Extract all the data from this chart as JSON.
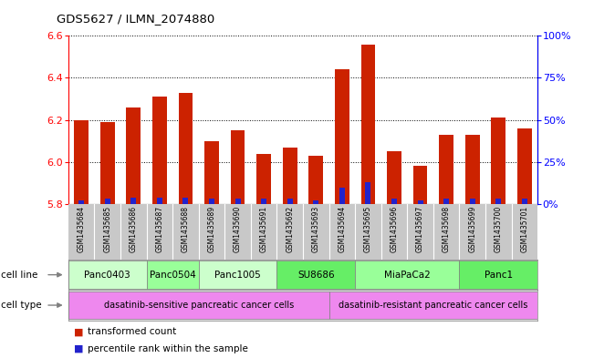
{
  "title": "GDS5627 / ILMN_2074880",
  "samples": [
    "GSM1435684",
    "GSM1435685",
    "GSM1435686",
    "GSM1435687",
    "GSM1435688",
    "GSM1435689",
    "GSM1435690",
    "GSM1435691",
    "GSM1435692",
    "GSM1435693",
    "GSM1435694",
    "GSM1435695",
    "GSM1435696",
    "GSM1435697",
    "GSM1435698",
    "GSM1435699",
    "GSM1435700",
    "GSM1435701"
  ],
  "transformed_count": [
    6.2,
    6.19,
    6.26,
    6.31,
    6.33,
    6.1,
    6.15,
    6.04,
    6.07,
    6.03,
    6.44,
    6.56,
    6.05,
    5.98,
    6.13,
    6.13,
    6.21,
    6.16
  ],
  "percentile_rank": [
    2,
    3,
    4,
    4,
    4,
    3,
    3,
    3,
    3,
    2,
    10,
    13,
    3,
    2,
    3,
    3,
    3,
    3
  ],
  "cell_lines": [
    {
      "label": "Panc0403",
      "start": 0,
      "end": 2,
      "color": "#ccffcc"
    },
    {
      "label": "Panc0504",
      "start": 3,
      "end": 4,
      "color": "#99ff99"
    },
    {
      "label": "Panc1005",
      "start": 5,
      "end": 7,
      "color": "#ccffcc"
    },
    {
      "label": "SU8686",
      "start": 8,
      "end": 10,
      "color": "#66ee66"
    },
    {
      "label": "MiaPaCa2",
      "start": 11,
      "end": 14,
      "color": "#99ff99"
    },
    {
      "label": "Panc1",
      "start": 15,
      "end": 17,
      "color": "#66ee66"
    }
  ],
  "cell_types": [
    {
      "label": "dasatinib-sensitive pancreatic cancer cells",
      "start": 0,
      "end": 9,
      "color": "#ee88ee"
    },
    {
      "label": "dasatinib-resistant pancreatic cancer cells",
      "start": 10,
      "end": 17,
      "color": "#ee88ee"
    }
  ],
  "ymin": 5.8,
  "ymax": 6.6,
  "y2min": 0,
  "y2max": 100,
  "yticks": [
    5.8,
    6.0,
    6.2,
    6.4,
    6.6
  ],
  "y2ticks": [
    0,
    25,
    50,
    75,
    100
  ],
  "bar_color": "#cc2200",
  "pct_color": "#2222cc",
  "gsm_bg": "#c8c8c8",
  "gsm_divider": "#ffffff"
}
